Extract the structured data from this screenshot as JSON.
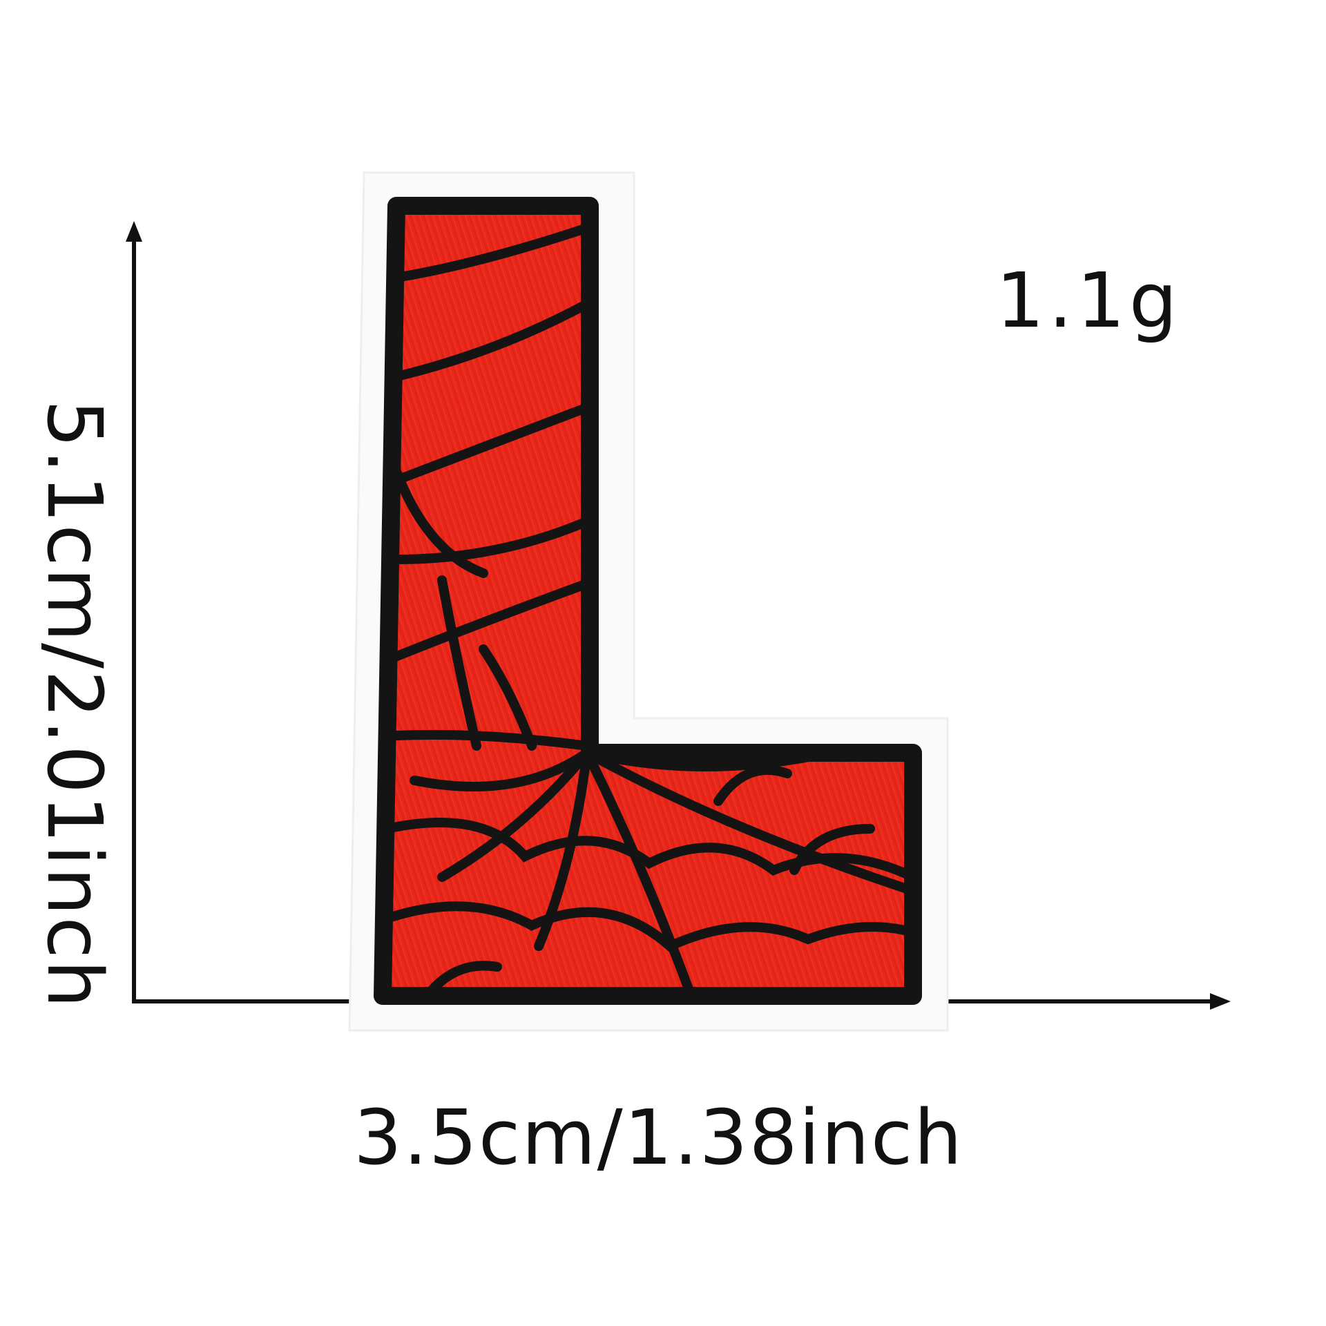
{
  "product": {
    "weight": "1.1g",
    "width": "3.5cm/1.38inch",
    "height": "5.1cm/2.01inch"
  },
  "colors": {
    "fill": "#e8261a",
    "stitch": "#141414",
    "felt": "#fafafa",
    "text": "#111111"
  },
  "icons": {
    "patch": "letter-L-patch",
    "width_arrow": "arrow-right-icon",
    "height_arrow": "arrow-up-icon"
  }
}
